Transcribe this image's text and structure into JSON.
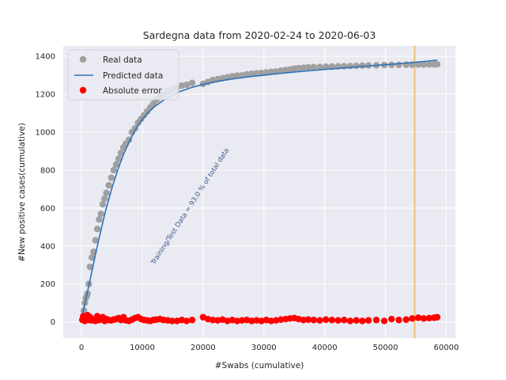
{
  "chart_data": {
    "type": "scatter",
    "title": "Sardegna data  from 2020-02-24 to 2020-06-03",
    "xlabel": "#Swabs (cumulative)",
    "ylabel": "#New positive cases(cumulative)",
    "xlim": [
      -3000,
      61500
    ],
    "ylim": [
      -85,
      1455
    ],
    "xticks": [
      0,
      10000,
      20000,
      30000,
      40000,
      50000,
      60000
    ],
    "xtick_labels": [
      "0",
      "10000",
      "20000",
      "30000",
      "40000",
      "50000",
      "60000"
    ],
    "yticks": [
      0,
      200,
      400,
      600,
      800,
      1000,
      1200,
      1400
    ],
    "ytick_labels": [
      "0",
      "200",
      "400",
      "600",
      "800",
      "1000",
      "1200",
      "1400"
    ],
    "grid": true,
    "legend_position": "top-left",
    "annotation": {
      "text": "Training/Test Data = 93.0 % of total data",
      "x": 12000,
      "y": 300,
      "color": "#3a5a8a"
    },
    "split_line": {
      "x": 54800,
      "color": "#f0c070"
    },
    "colors": {
      "real": "#a0a0a0",
      "predicted": "#2f72b8",
      "error": "#ff0000",
      "background": "#eaeaf2"
    },
    "series": [
      {
        "name": "Real data",
        "kind": "scatter",
        "x": [
          150,
          300,
          400,
          550,
          700,
          850,
          1000,
          1200,
          1400,
          1700,
          2000,
          2300,
          2600,
          2900,
          3200,
          3500,
          3800,
          4100,
          4500,
          4900,
          5300,
          5700,
          6100,
          6500,
          6900,
          7300,
          7800,
          8300,
          8800,
          9300,
          9800,
          10300,
          10800,
          11300,
          11800,
          12300,
          12900,
          13500,
          14200,
          14900,
          15700,
          16500,
          17300,
          18200,
          20000,
          20800,
          21600,
          22400,
          23200,
          24000,
          24800,
          25600,
          26400,
          27200,
          28000,
          28800,
          29600,
          30400,
          31200,
          32000,
          32800,
          33600,
          34300,
          35000,
          35700,
          36500,
          37300,
          38200,
          39200,
          40200,
          41200,
          42200,
          43200,
          44200,
          45200,
          46200,
          47200,
          48500,
          49800,
          51000,
          52200,
          53400,
          54400,
          55400,
          56300,
          57200,
          58000,
          58500
        ],
        "y": [
          10,
          30,
          60,
          100,
          125,
          135,
          150,
          200,
          290,
          340,
          370,
          430,
          490,
          540,
          570,
          620,
          650,
          680,
          720,
          760,
          800,
          830,
          860,
          890,
          920,
          940,
          960,
          1000,
          1020,
          1050,
          1070,
          1090,
          1110,
          1130,
          1150,
          1170,
          1185,
          1200,
          1215,
          1225,
          1235,
          1245,
          1250,
          1260,
          1255,
          1265,
          1275,
          1280,
          1285,
          1290,
          1295,
          1298,
          1300,
          1305,
          1308,
          1310,
          1312,
          1315,
          1318,
          1320,
          1325,
          1328,
          1330,
          1335,
          1338,
          1340,
          1342,
          1343,
          1344,
          1345,
          1346,
          1347,
          1348,
          1349,
          1350,
          1351,
          1352,
          1353,
          1354,
          1355,
          1355,
          1356,
          1356,
          1357,
          1357,
          1357,
          1358,
          1358
        ]
      },
      {
        "name": "Predicted data",
        "kind": "line",
        "x": [
          0,
          500,
          1000,
          1500,
          2000,
          2500,
          3000,
          3500,
          4000,
          5000,
          6000,
          7000,
          8000,
          9000,
          10000,
          11000,
          12000,
          14000,
          16000,
          18000,
          20000,
          22000,
          24000,
          26000,
          28000,
          30000,
          32000,
          34000,
          36000,
          38000,
          40000,
          42000,
          44000,
          46000,
          48000,
          50000,
          52000,
          54000,
          56000,
          58500
        ],
        "y": [
          20,
          88,
          160,
          235,
          310,
          385,
          455,
          525,
          590,
          705,
          805,
          890,
          960,
          1020,
          1068,
          1105,
          1135,
          1180,
          1212,
          1235,
          1252,
          1266,
          1277,
          1286,
          1294,
          1301,
          1308,
          1314,
          1320,
          1326,
          1331,
          1336,
          1341,
          1346,
          1351,
          1356,
          1361,
          1366,
          1372,
          1380
        ]
      },
      {
        "name": "Absolute error",
        "kind": "scatter",
        "x": [
          150,
          300,
          400,
          550,
          700,
          850,
          1000,
          1200,
          1400,
          1700,
          2000,
          2300,
          2600,
          2900,
          3200,
          3500,
          3800,
          4100,
          4500,
          4900,
          5300,
          5700,
          6100,
          6500,
          6900,
          7300,
          7800,
          8300,
          8800,
          9300,
          9800,
          10300,
          10800,
          11300,
          11800,
          12300,
          12900,
          13500,
          14200,
          14900,
          15700,
          16500,
          17300,
          18200,
          20000,
          20800,
          21600,
          22400,
          23200,
          24000,
          24800,
          25600,
          26400,
          27200,
          28000,
          28800,
          29600,
          30400,
          31200,
          32000,
          32800,
          33600,
          34300,
          35000,
          35700,
          36500,
          37300,
          38200,
          39200,
          40200,
          41200,
          42200,
          43200,
          44200,
          45200,
          46200,
          47200,
          48500,
          49800,
          51000,
          52200,
          53400,
          54400,
          55400,
          56300,
          57200,
          58000,
          58500
        ],
        "y": [
          12,
          30,
          15,
          5,
          20,
          10,
          35,
          10,
          25,
          8,
          12,
          5,
          30,
          10,
          18,
          25,
          5,
          15,
          10,
          8,
          12,
          15,
          20,
          10,
          25,
          8,
          5,
          12,
          20,
          25,
          15,
          10,
          8,
          5,
          10,
          12,
          15,
          10,
          8,
          5,
          5,
          10,
          5,
          10,
          25,
          15,
          10,
          8,
          12,
          5,
          10,
          5,
          8,
          10,
          5,
          8,
          5,
          10,
          5,
          8,
          12,
          15,
          18,
          20,
          15,
          10,
          12,
          10,
          8,
          12,
          10,
          8,
          10,
          5,
          8,
          5,
          8,
          10,
          5,
          15,
          10,
          12,
          18,
          22,
          18,
          20,
          22,
          25
        ]
      }
    ]
  }
}
